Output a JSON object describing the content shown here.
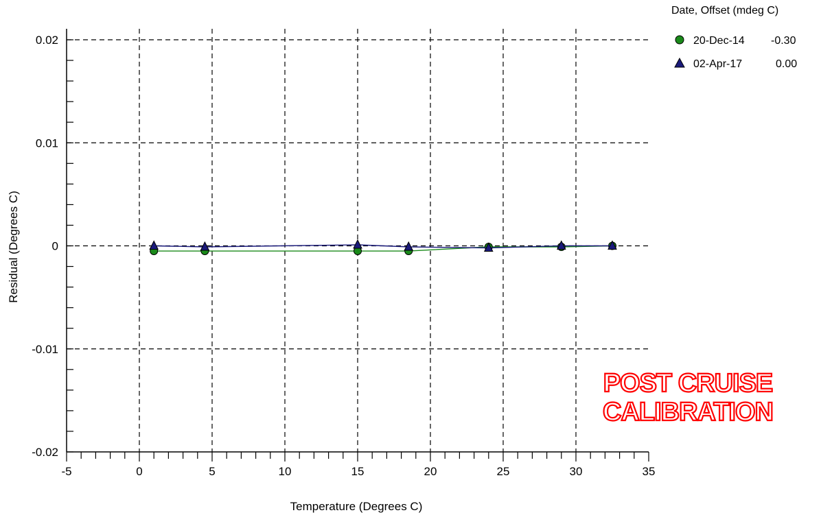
{
  "chart_data": {
    "type": "line",
    "xlabel": "Temperature (Degrees C)",
    "ylabel": "Residual (Degrees C)",
    "xlim": [
      -5,
      35
    ],
    "ylim": [
      -0.02,
      0.02
    ],
    "x_ticks": [
      -5,
      0,
      5,
      10,
      15,
      20,
      25,
      30,
      35
    ],
    "x_tick_labels": [
      "-5",
      "0",
      "5",
      "10",
      "15",
      "20",
      "25",
      "30",
      "35"
    ],
    "y_ticks": [
      0.02,
      0.01,
      0,
      -0.01,
      -0.02
    ],
    "y_tick_labels": [
      "0.02",
      "0.01",
      "0",
      "-0.01",
      "-0.02"
    ],
    "grid": true,
    "legend_title": "Date, Offset (mdeg C)",
    "legend_position": "top-right",
    "series": [
      {
        "name": "20-Dec-14",
        "offset": "-0.30",
        "marker": "circle",
        "color": "#1a8a1a",
        "x": [
          1.0,
          4.5,
          15.0,
          18.5,
          24.0,
          29.0,
          32.5
        ],
        "y": [
          -0.0005,
          -0.0005,
          -0.0005,
          -0.0005,
          -0.0001,
          -0.0001,
          0.0
        ]
      },
      {
        "name": "02-Apr-17",
        "offset": "0.00",
        "marker": "triangle",
        "color": "#1a1a7a",
        "x": [
          1.0,
          4.5,
          15.0,
          18.5,
          24.0,
          29.0,
          32.5
        ],
        "y": [
          0.0,
          -0.0001,
          0.0001,
          -0.0001,
          -0.0002,
          0.0,
          0.0
        ]
      }
    ]
  },
  "annotation": {
    "line1": "POST CRUISE",
    "line2": "CALIBRATION",
    "color": "#ff0000"
  }
}
